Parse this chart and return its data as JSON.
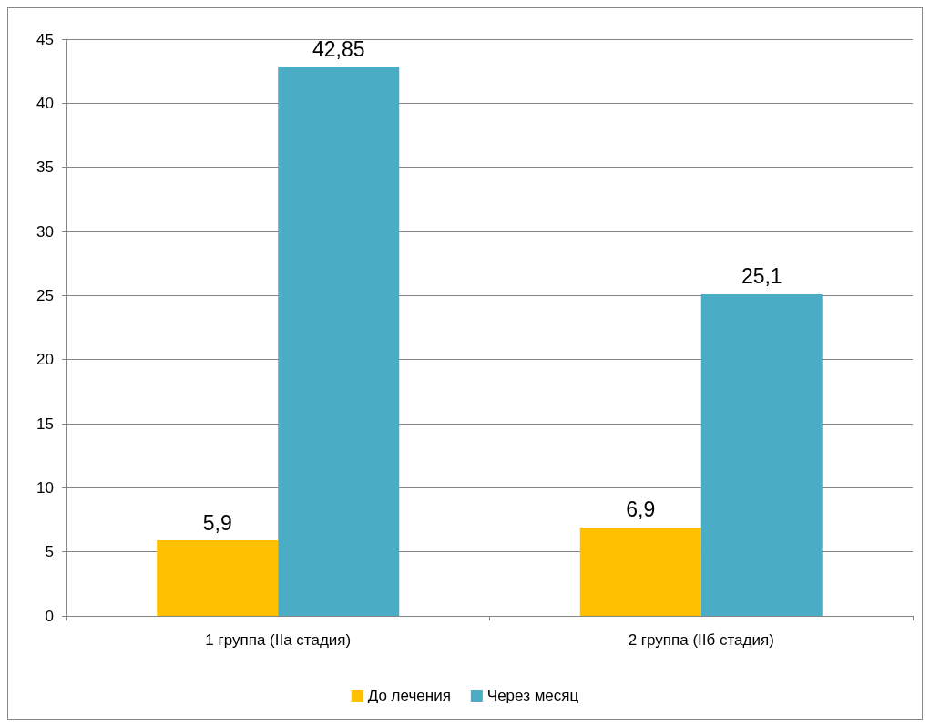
{
  "chart_data": {
    "type": "bar",
    "categories": [
      "1 группа (IIa стадия)",
      "2 группа (IIб стадия)"
    ],
    "series": [
      {
        "name": "До лечения",
        "color": "#ffc000",
        "values": [
          5.9,
          6.9
        ],
        "value_labels": [
          "5,9",
          "6,9"
        ]
      },
      {
        "name": "Через месяц",
        "color": "#4bacc6",
        "values": [
          42.85,
          25.1
        ],
        "value_labels": [
          "42,85",
          "25,1"
        ]
      }
    ],
    "ylim": [
      0,
      45
    ],
    "yticks": [
      0,
      5,
      10,
      15,
      20,
      25,
      30,
      35,
      40,
      45
    ],
    "grid": "y",
    "legend": "bottom"
  }
}
